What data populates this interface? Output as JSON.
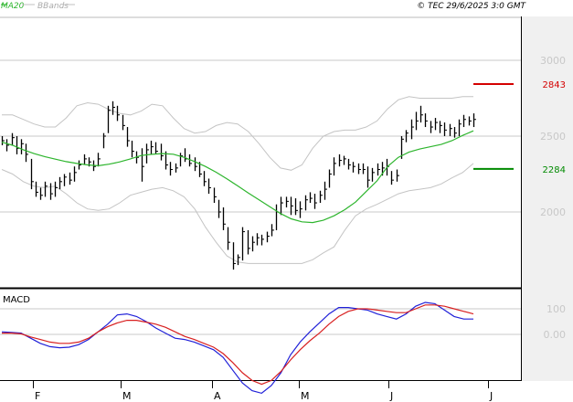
{
  "header": {
    "legend": [
      {
        "label": "MA20",
        "color": "#2db52d"
      },
      {
        "label": "BBands",
        "color": "#c0c0c0"
      }
    ],
    "copyright": "© TEC 29/6/2025 3:0 GMT"
  },
  "macd_title": "MACD",
  "chart_data": [
    {
      "type": "line",
      "panel": "price",
      "y_ticks": [
        "3000",
        "2500",
        "2000"
      ],
      "ylim": [
        1550,
        3400
      ],
      "x_month_labels": [
        "F",
        "M",
        "A",
        "M",
        "J",
        "J"
      ],
      "annotations": [
        {
          "value": 2843,
          "label": "2843",
          "color": "#d40000"
        },
        {
          "value": 2284,
          "label": "2284",
          "color": "#008a00"
        }
      ],
      "bars": [
        [
          2500,
          2440,
          2470
        ],
        [
          2480,
          2400,
          2440
        ],
        [
          2520,
          2440,
          2490
        ],
        [
          2500,
          2380,
          2420
        ],
        [
          2480,
          2380,
          2450
        ],
        [
          2450,
          2330,
          2380
        ],
        [
          2350,
          2150,
          2200
        ],
        [
          2200,
          2100,
          2130
        ],
        [
          2160,
          2080,
          2110
        ],
        [
          2200,
          2100,
          2170
        ],
        [
          2190,
          2080,
          2120
        ],
        [
          2200,
          2100,
          2160
        ],
        [
          2230,
          2150,
          2200
        ],
        [
          2250,
          2170,
          2230
        ],
        [
          2260,
          2180,
          2210
        ],
        [
          2300,
          2200,
          2260
        ],
        [
          2340,
          2280,
          2310
        ],
        [
          2380,
          2310,
          2350
        ],
        [
          2360,
          2300,
          2330
        ],
        [
          2340,
          2270,
          2300
        ],
        [
          2390,
          2300,
          2350
        ],
        [
          2520,
          2420,
          2500
        ],
        [
          2700,
          2520,
          2670
        ],
        [
          2730,
          2640,
          2690
        ],
        [
          2700,
          2600,
          2640
        ],
        [
          2640,
          2540,
          2570
        ],
        [
          2560,
          2430,
          2470
        ],
        [
          2470,
          2360,
          2400
        ],
        [
          2400,
          2320,
          2360
        ],
        [
          2420,
          2200,
          2300
        ],
        [
          2450,
          2320,
          2410
        ],
        [
          2470,
          2380,
          2430
        ],
        [
          2460,
          2380,
          2400
        ],
        [
          2450,
          2340,
          2370
        ],
        [
          2400,
          2280,
          2310
        ],
        [
          2330,
          2240,
          2280
        ],
        [
          2320,
          2260,
          2290
        ],
        [
          2390,
          2300,
          2370
        ],
        [
          2420,
          2330,
          2350
        ],
        [
          2380,
          2300,
          2320
        ],
        [
          2360,
          2270,
          2300
        ],
        [
          2330,
          2230,
          2250
        ],
        [
          2270,
          2170,
          2200
        ],
        [
          2220,
          2120,
          2160
        ],
        [
          2160,
          2060,
          2100
        ],
        [
          2080,
          1960,
          2000
        ],
        [
          2030,
          1880,
          1920
        ],
        [
          1900,
          1750,
          1800
        ],
        [
          1800,
          1620,
          1660
        ],
        [
          1720,
          1650,
          1700
        ],
        [
          1900,
          1680,
          1870
        ],
        [
          1880,
          1720,
          1760
        ],
        [
          1840,
          1740,
          1800
        ],
        [
          1860,
          1780,
          1830
        ],
        [
          1850,
          1780,
          1820
        ],
        [
          1870,
          1800,
          1840
        ],
        [
          1920,
          1840,
          1880
        ],
        [
          2050,
          1880,
          2000
        ],
        [
          2100,
          1980,
          2060
        ],
        [
          2100,
          2030,
          2070
        ],
        [
          2100,
          1980,
          2040
        ],
        [
          2090,
          1980,
          2010
        ],
        [
          2070,
          1960,
          2020
        ],
        [
          2110,
          2010,
          2080
        ],
        [
          2130,
          2060,
          2090
        ],
        [
          2120,
          2020,
          2060
        ],
        [
          2140,
          2060,
          2110
        ],
        [
          2200,
          2080,
          2150
        ],
        [
          2280,
          2160,
          2250
        ],
        [
          2360,
          2240,
          2320
        ],
        [
          2380,
          2300,
          2340
        ],
        [
          2370,
          2310,
          2350
        ],
        [
          2350,
          2280,
          2310
        ],
        [
          2330,
          2260,
          2300
        ],
        [
          2320,
          2250,
          2280
        ],
        [
          2320,
          2250,
          2280
        ],
        [
          2300,
          2160,
          2210
        ],
        [
          2290,
          2200,
          2260
        ],
        [
          2320,
          2240,
          2280
        ],
        [
          2330,
          2240,
          2290
        ],
        [
          2350,
          2240,
          2300
        ],
        [
          2270,
          2180,
          2210
        ],
        [
          2280,
          2200,
          2240
        ],
        [
          2500,
          2350,
          2480
        ],
        [
          2540,
          2460,
          2520
        ],
        [
          2610,
          2480,
          2560
        ],
        [
          2660,
          2540,
          2600
        ],
        [
          2700,
          2590,
          2640
        ],
        [
          2650,
          2560,
          2600
        ],
        [
          2600,
          2520,
          2560
        ],
        [
          2620,
          2540,
          2590
        ],
        [
          2600,
          2520,
          2570
        ],
        [
          2590,
          2500,
          2540
        ],
        [
          2580,
          2500,
          2550
        ],
        [
          2560,
          2490,
          2520
        ],
        [
          2610,
          2500,
          2580
        ],
        [
          2640,
          2560,
          2610
        ],
        [
          2630,
          2570,
          2600
        ],
        [
          2650,
          2560,
          2610
        ]
      ],
      "ma20": [
        2460,
        2440,
        2410,
        2385,
        2365,
        2348,
        2332,
        2320,
        2310,
        2305,
        2315,
        2330,
        2350,
        2372,
        2380,
        2385,
        2381,
        2360,
        2332,
        2300,
        2262,
        2218,
        2172,
        2125,
        2080,
        2035,
        1990,
        1955,
        1935,
        1930,
        1945,
        1975,
        2015,
        2065,
        2135,
        2205,
        2300,
        2360,
        2395,
        2415,
        2430,
        2445,
        2470,
        2505,
        2535
      ],
      "bb_upper": [
        2640,
        2640,
        2610,
        2580,
        2560,
        2560,
        2620,
        2700,
        2720,
        2710,
        2675,
        2650,
        2640,
        2665,
        2710,
        2700,
        2620,
        2550,
        2520,
        2530,
        2570,
        2590,
        2580,
        2530,
        2450,
        2360,
        2290,
        2275,
        2310,
        2420,
        2500,
        2530,
        2540,
        2540,
        2560,
        2600,
        2680,
        2740,
        2760,
        2750,
        2750,
        2750,
        2750,
        2760,
        2760
      ],
      "bb_lower": [
        2280,
        2250,
        2200,
        2170,
        2160,
        2170,
        2120,
        2060,
        2020,
        2010,
        2020,
        2060,
        2110,
        2130,
        2150,
        2160,
        2140,
        2100,
        2020,
        1900,
        1800,
        1710,
        1670,
        1660,
        1660,
        1660,
        1660,
        1660,
        1660,
        1685,
        1730,
        1770,
        1880,
        1975,
        2020,
        2050,
        2085,
        2120,
        2140,
        2150,
        2160,
        2185,
        2225,
        2260,
        2320
      ],
      "xlim": [
        0,
        100
      ]
    },
    {
      "type": "line",
      "panel": "macd",
      "y_ticks": [
        "100",
        "0.00"
      ],
      "ylim": [
        -270,
        170
      ],
      "series": [
        {
          "values": [
            10,
            8,
            5,
            -15,
            -35,
            -48,
            -52,
            -50,
            -40,
            -20,
            10,
            40,
            76,
            80,
            70,
            50,
            25,
            5,
            -15,
            -20,
            -30,
            -45,
            -60,
            -90,
            -140,
            -190,
            -220,
            -230,
            -200,
            -150,
            -80,
            -30,
            10,
            45,
            80,
            105,
            105,
            100,
            95,
            80,
            70,
            60,
            80,
            110,
            125,
            120,
            95,
            70,
            60,
            60
          ]
        },
        {
          "values": [
            5,
            5,
            2,
            -10,
            -20,
            -30,
            -35,
            -35,
            -30,
            -15,
            10,
            30,
            45,
            55,
            55,
            48,
            40,
            28,
            10,
            -8,
            -20,
            -35,
            -50,
            -75,
            -110,
            -150,
            -180,
            -195,
            -180,
            -145,
            -100,
            -60,
            -25,
            5,
            40,
            70,
            90,
            100,
            100,
            95,
            90,
            85,
            85,
            100,
            115,
            115,
            110,
            100,
            90,
            80
          ]
        }
      ]
    }
  ]
}
